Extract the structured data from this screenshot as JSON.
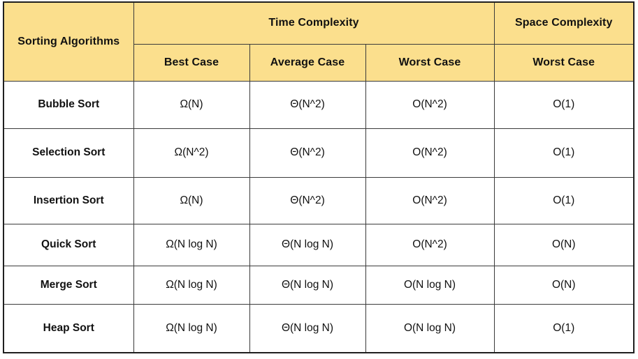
{
  "colors": {
    "header_bg": "#FBDF8D",
    "border": "#3a3a3a",
    "text": "#111111",
    "page_bg": "#ffffff"
  },
  "chart_data": {
    "type": "table",
    "corner_header": "Sorting Algorithms",
    "column_groups": [
      {
        "label": "Time Complexity",
        "span": 3
      },
      {
        "label": "Space Complexity",
        "span": 1
      }
    ],
    "columns": [
      "Best Case",
      "Average Case",
      "Worst Case",
      "Worst Case"
    ],
    "rows": [
      {
        "algorithm": "Bubble Sort",
        "best_case": "Ω(N)",
        "average_case": "Θ(N^2)",
        "worst_case": "O(N^2)",
        "space_worst_case": "O(1)"
      },
      {
        "algorithm": "Selection Sort",
        "best_case": "Ω(N^2)",
        "average_case": "Θ(N^2)",
        "worst_case": "O(N^2)",
        "space_worst_case": "O(1)"
      },
      {
        "algorithm": "Insertion Sort",
        "best_case": "Ω(N)",
        "average_case": "Θ(N^2)",
        "worst_case": "O(N^2)",
        "space_worst_case": "O(1)"
      },
      {
        "algorithm": "Quick Sort",
        "best_case": "Ω(N log N)",
        "average_case": "Θ(N log N)",
        "worst_case": "O(N^2)",
        "space_worst_case": "O(N)"
      },
      {
        "algorithm": "Merge Sort",
        "best_case": "Ω(N log N)",
        "average_case": "Θ(N log N)",
        "worst_case": "O(N log N)",
        "space_worst_case": "O(N)"
      },
      {
        "algorithm": "Heap Sort",
        "best_case": "Ω(N log N)",
        "average_case": "Θ(N log N)",
        "worst_case": "O(N log N)",
        "space_worst_case": "O(1)"
      }
    ]
  }
}
